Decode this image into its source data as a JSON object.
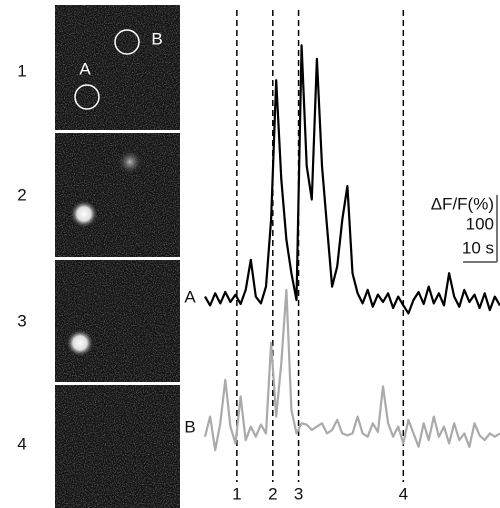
{
  "chart_data": {
    "type": "line",
    "frames": [
      "1",
      "2",
      "3",
      "4"
    ],
    "x": [
      0,
      1.5,
      3,
      4.5,
      6,
      7.5,
      9,
      10.5,
      12,
      13.5,
      15,
      16.5,
      18,
      19.5,
      21,
      22.5,
      24,
      25.5,
      27,
      28.5,
      30,
      31.5,
      33,
      34.5,
      36,
      37.5,
      39,
      40.5,
      42,
      43.5,
      45,
      46.5,
      48,
      49.5,
      51,
      52.5,
      54,
      55.5,
      57,
      58.5,
      60,
      61.5,
      63,
      64.5,
      66,
      67.5,
      69,
      70.5,
      72,
      73.5,
      75,
      76.5,
      78,
      79.5,
      81,
      82.5,
      84,
      85.5,
      87
    ],
    "series": [
      {
        "name": "A",
        "color": "#000000",
        "values": [
          5,
          -8,
          10,
          -5,
          12,
          -3,
          8,
          -6,
          15,
          60,
          5,
          -5,
          20,
          120,
          328,
          180,
          90,
          40,
          0,
          380,
          200,
          150,
          360,
          200,
          110,
          20,
          50,
          120,
          170,
          40,
          10,
          -5,
          15,
          -10,
          8,
          -3,
          10,
          -12,
          5,
          -8,
          -20,
          0,
          12,
          -6,
          20,
          -5,
          10,
          -8,
          40,
          5,
          -10,
          15,
          -3,
          8,
          -12,
          10,
          -15,
          5,
          -8
        ]
      },
      {
        "name": "B",
        "color": "#aaaaaa",
        "values": [
          -10,
          20,
          -30,
          10,
          75,
          5,
          -20,
          50,
          -15,
          5,
          -10,
          8,
          -5,
          130,
          20,
          100,
          209,
          30,
          -5,
          10,
          8,
          0,
          5,
          10,
          -5,
          0,
          15,
          -5,
          -8,
          -5,
          20,
          -5,
          -10,
          10,
          -3,
          65,
          10,
          -10,
          5,
          -20,
          15,
          -5,
          -25,
          10,
          -15,
          20,
          -10,
          5,
          -20,
          10,
          -15,
          -5,
          -25,
          10,
          -8,
          -15,
          -5,
          -10,
          -5
        ]
      }
    ],
    "events": [
      {
        "value": 9.4,
        "label": "1"
      },
      {
        "value": 20,
        "label": "2"
      },
      {
        "value": 27.6,
        "label": "3"
      },
      {
        "value": 58.5,
        "label": "4"
      }
    ],
    "scale_bar": {
      "y_title": "ΔF/F(%)",
      "y": {
        "value": 100,
        "label": "100"
      },
      "x": {
        "value": 10,
        "label": "10 s"
      }
    }
  }
}
